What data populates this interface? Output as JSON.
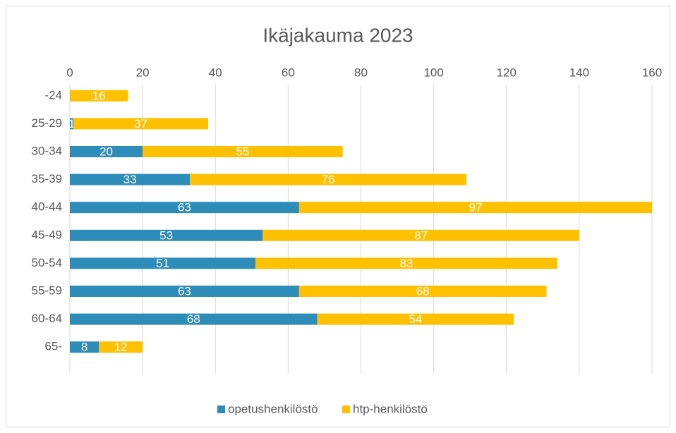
{
  "chart_data": {
    "type": "bar",
    "orientation": "horizontal",
    "stacked": true,
    "title": "Ikäjakauma 2023",
    "categories": [
      "-24",
      "25-29",
      "30-34",
      "35-39",
      "40-44",
      "45-49",
      "50-54",
      "55-59",
      "60-64",
      "65-"
    ],
    "series": [
      {
        "name": "opetushenkilöstö",
        "color": "#2e8db8",
        "values": [
          0,
          1,
          20,
          33,
          63,
          53,
          51,
          63,
          68,
          8
        ]
      },
      {
        "name": "htp-henkilöstö",
        "color": "#ffc000",
        "values": [
          16,
          37,
          55,
          76,
          97,
          87,
          83,
          68,
          54,
          12
        ]
      }
    ],
    "xlim": [
      0,
      160
    ],
    "xticks": [
      0,
      20,
      40,
      60,
      80,
      100,
      120,
      140,
      160
    ],
    "grid": true,
    "legend": "bottom"
  }
}
